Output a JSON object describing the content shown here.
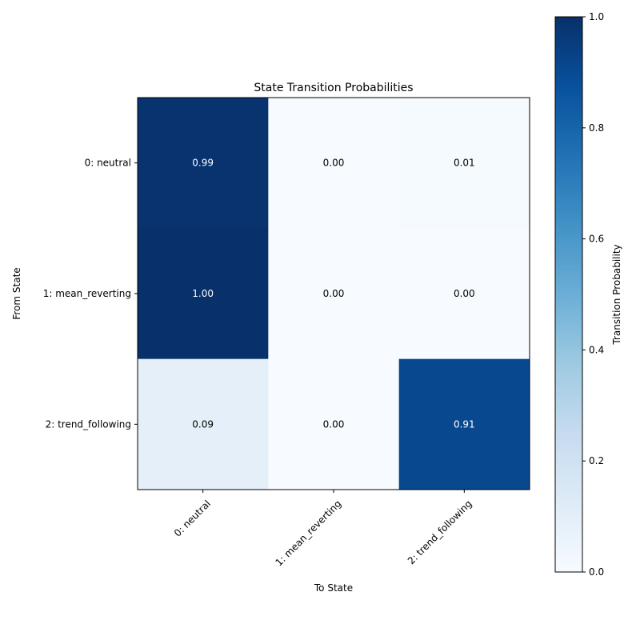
{
  "chart_data": {
    "type": "heatmap",
    "title": "State Transition Probabilities",
    "xlabel": "To State",
    "ylabel": "From State",
    "row_labels": [
      "0: neutral",
      "1: mean_reverting",
      "2: trend_following"
    ],
    "col_labels": [
      "0: neutral",
      "1: mean_reverting",
      "2: trend_following"
    ],
    "values": [
      [
        0.99,
        0.0,
        0.01
      ],
      [
        1.0,
        0.0,
        0.0
      ],
      [
        0.09,
        0.0,
        0.91
      ]
    ],
    "value_labels": [
      [
        "0.99",
        "0.00",
        "0.01"
      ],
      [
        "1.00",
        "0.00",
        "0.00"
      ],
      [
        "0.09",
        "0.00",
        "0.91"
      ]
    ],
    "colormap": "Blues",
    "vmin": 0.0,
    "vmax": 1.0,
    "colorbar": {
      "label": "Transition Probability",
      "tick_values": [
        0.0,
        0.2,
        0.4,
        0.6,
        0.8,
        1.0
      ],
      "tick_labels": [
        "0.0",
        "0.2",
        "0.4",
        "0.6",
        "0.8",
        "1.0"
      ]
    }
  }
}
